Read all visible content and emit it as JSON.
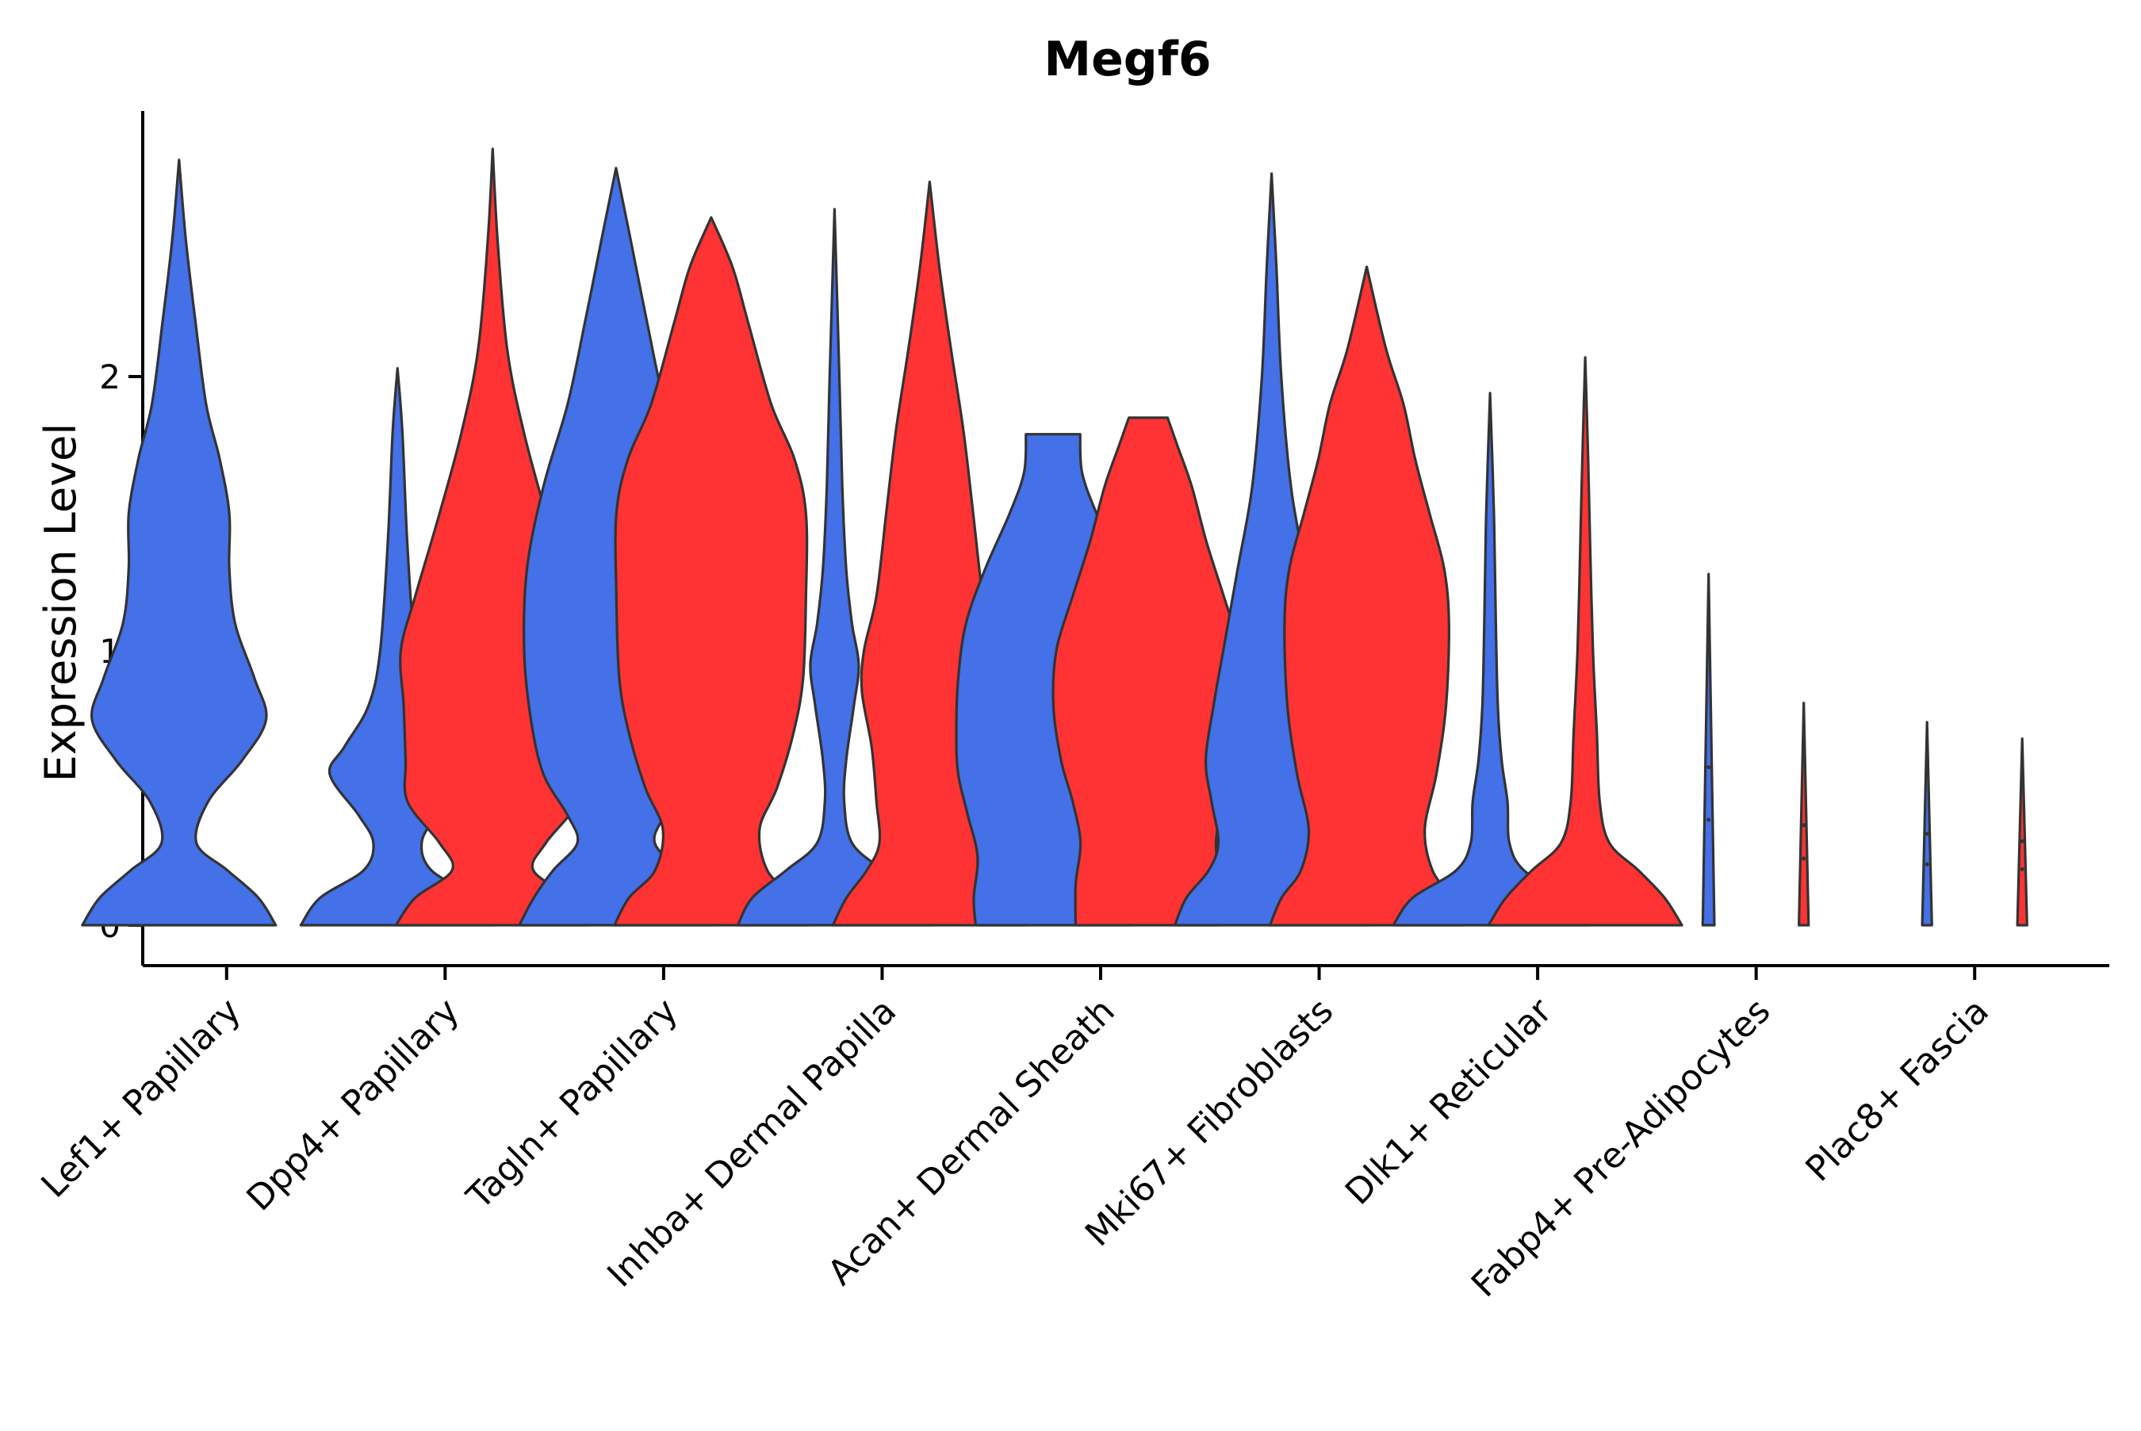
{
  "chart_data": {
    "type": "violin",
    "title": "Megf6",
    "xlabel": "",
    "ylabel": "Expression Level",
    "ylim": [
      -0.14,
      2.96
    ],
    "yticks": [
      0,
      1,
      2
    ],
    "grid": false,
    "legend": "none",
    "colors": {
      "group_a": "#4470E8",
      "group_b": "#FF3333",
      "outline": "#333333"
    },
    "categories": [
      "Lef1+ Papillary",
      "Dpp4+ Papillary",
      "Tagln+ Papillary",
      "Inhba+ Dermal Papilla",
      "Acan+ Dermal Sheath",
      "Mki67+ Fibroblasts",
      "Dlk1+ Reticular",
      "Fabp4+ Pre-Adipocytes",
      "Plac8+ Fascia"
    ],
    "violins": [
      {
        "category": "Lef1+ Papillary",
        "group": "a",
        "max": 2.79,
        "profile": [
          [
            0,
            1.0
          ],
          [
            0.1,
            0.82
          ],
          [
            0.2,
            0.5
          ],
          [
            0.3,
            0.18
          ],
          [
            0.45,
            0.3
          ],
          [
            0.6,
            0.65
          ],
          [
            0.75,
            0.9
          ],
          [
            0.9,
            0.78
          ],
          [
            1.1,
            0.58
          ],
          [
            1.3,
            0.52
          ],
          [
            1.5,
            0.52
          ],
          [
            1.7,
            0.42
          ],
          [
            1.9,
            0.28
          ],
          [
            2.2,
            0.17
          ],
          [
            2.5,
            0.07
          ],
          [
            2.79,
            0.0
          ]
        ]
      },
      {
        "category": "Dpp4+ Papillary",
        "group": "a",
        "max": 2.03,
        "profile": [
          [
            0,
            1.0
          ],
          [
            0.1,
            0.8
          ],
          [
            0.2,
            0.35
          ],
          [
            0.3,
            0.25
          ],
          [
            0.4,
            0.4
          ],
          [
            0.55,
            0.7
          ],
          [
            0.65,
            0.55
          ],
          [
            0.8,
            0.3
          ],
          [
            1.0,
            0.18
          ],
          [
            1.4,
            0.1
          ],
          [
            1.8,
            0.05
          ],
          [
            2.03,
            0.0
          ]
        ]
      },
      {
        "category": "Dpp4+ Papillary",
        "group": "b",
        "max": 2.83,
        "profile": [
          [
            0,
            1.0
          ],
          [
            0.1,
            0.8
          ],
          [
            0.2,
            0.42
          ],
          [
            0.3,
            0.55
          ],
          [
            0.45,
            0.88
          ],
          [
            0.6,
            0.9
          ],
          [
            0.8,
            0.92
          ],
          [
            1.0,
            0.95
          ],
          [
            1.2,
            0.8
          ],
          [
            1.5,
            0.55
          ],
          [
            1.8,
            0.32
          ],
          [
            2.1,
            0.15
          ],
          [
            2.5,
            0.05
          ],
          [
            2.83,
            0.0
          ]
        ]
      },
      {
        "category": "Tagln+ Papillary",
        "group": "a",
        "max": 2.76,
        "profile": [
          [
            0,
            1.0
          ],
          [
            0.1,
            0.85
          ],
          [
            0.2,
            0.65
          ],
          [
            0.3,
            0.4
          ],
          [
            0.4,
            0.5
          ],
          [
            0.55,
            0.75
          ],
          [
            0.75,
            0.88
          ],
          [
            1.0,
            0.95
          ],
          [
            1.3,
            0.92
          ],
          [
            1.6,
            0.75
          ],
          [
            1.9,
            0.5
          ],
          [
            2.2,
            0.32
          ],
          [
            2.5,
            0.15
          ],
          [
            2.76,
            0.0
          ]
        ]
      },
      {
        "category": "Tagln+ Papillary",
        "group": "b",
        "max": 2.58,
        "profile": [
          [
            0,
            1.0
          ],
          [
            0.1,
            0.85
          ],
          [
            0.2,
            0.58
          ],
          [
            0.35,
            0.5
          ],
          [
            0.5,
            0.68
          ],
          [
            0.7,
            0.85
          ],
          [
            0.9,
            0.95
          ],
          [
            1.2,
            0.98
          ],
          [
            1.5,
            0.98
          ],
          [
            1.7,
            0.86
          ],
          [
            1.9,
            0.62
          ],
          [
            2.2,
            0.38
          ],
          [
            2.4,
            0.22
          ],
          [
            2.58,
            0.0
          ]
        ]
      },
      {
        "category": "Inhba+ Dermal Papilla",
        "group": "a",
        "max": 2.61,
        "profile": [
          [
            0,
            1.0
          ],
          [
            0.1,
            0.85
          ],
          [
            0.2,
            0.5
          ],
          [
            0.3,
            0.18
          ],
          [
            0.45,
            0.1
          ],
          [
            0.6,
            0.12
          ],
          [
            0.8,
            0.2
          ],
          [
            0.95,
            0.25
          ],
          [
            1.1,
            0.18
          ],
          [
            1.3,
            0.12
          ],
          [
            1.6,
            0.08
          ],
          [
            2.0,
            0.05
          ],
          [
            2.61,
            0.0
          ]
        ]
      },
      {
        "category": "Inhba+ Dermal Papilla",
        "group": "b",
        "max": 2.71,
        "profile": [
          [
            0,
            1.0
          ],
          [
            0.1,
            0.86
          ],
          [
            0.2,
            0.65
          ],
          [
            0.3,
            0.52
          ],
          [
            0.45,
            0.55
          ],
          [
            0.65,
            0.6
          ],
          [
            0.85,
            0.7
          ],
          [
            1.0,
            0.68
          ],
          [
            1.2,
            0.55
          ],
          [
            1.5,
            0.45
          ],
          [
            1.8,
            0.35
          ],
          [
            2.1,
            0.22
          ],
          [
            2.4,
            0.1
          ],
          [
            2.71,
            0.0
          ]
        ]
      },
      {
        "category": "Acan+ Dermal Sheath",
        "group": "a",
        "max": 1.79,
        "profile": [
          [
            0,
            0.8
          ],
          [
            0.1,
            0.82
          ],
          [
            0.25,
            0.78
          ],
          [
            0.4,
            0.88
          ],
          [
            0.55,
            0.98
          ],
          [
            0.7,
            1.0
          ],
          [
            0.9,
            0.98
          ],
          [
            1.1,
            0.9
          ],
          [
            1.3,
            0.7
          ],
          [
            1.5,
            0.45
          ],
          [
            1.65,
            0.3
          ],
          [
            1.79,
            0.28
          ]
        ]
      },
      {
        "category": "Acan+ Dermal Sheath",
        "group": "b",
        "max": 1.85,
        "profile": [
          [
            0,
            0.75
          ],
          [
            0.15,
            0.75
          ],
          [
            0.3,
            0.7
          ],
          [
            0.45,
            0.78
          ],
          [
            0.6,
            0.9
          ],
          [
            0.8,
            0.98
          ],
          [
            1.0,
            0.95
          ],
          [
            1.2,
            0.78
          ],
          [
            1.4,
            0.6
          ],
          [
            1.6,
            0.45
          ],
          [
            1.75,
            0.3
          ],
          [
            1.85,
            0.2
          ]
        ]
      },
      {
        "category": "Mki67+ Fibroblasts",
        "group": "a",
        "max": 2.74,
        "profile": [
          [
            0,
            1.0
          ],
          [
            0.1,
            0.88
          ],
          [
            0.2,
            0.65
          ],
          [
            0.3,
            0.55
          ],
          [
            0.45,
            0.62
          ],
          [
            0.6,
            0.68
          ],
          [
            0.8,
            0.6
          ],
          [
            1.0,
            0.5
          ],
          [
            1.3,
            0.35
          ],
          [
            1.6,
            0.2
          ],
          [
            2.0,
            0.1
          ],
          [
            2.4,
            0.05
          ],
          [
            2.74,
            0.0
          ]
        ]
      },
      {
        "category": "Mki67+ Fibroblasts",
        "group": "b",
        "max": 2.4,
        "profile": [
          [
            0,
            1.0
          ],
          [
            0.1,
            0.88
          ],
          [
            0.2,
            0.68
          ],
          [
            0.35,
            0.6
          ],
          [
            0.55,
            0.72
          ],
          [
            0.8,
            0.82
          ],
          [
            1.1,
            0.85
          ],
          [
            1.3,
            0.8
          ],
          [
            1.5,
            0.65
          ],
          [
            1.7,
            0.5
          ],
          [
            1.9,
            0.38
          ],
          [
            2.1,
            0.2
          ],
          [
            2.4,
            0.0
          ]
        ]
      },
      {
        "category": "Dlk1+ Reticular",
        "group": "a",
        "max": 1.94,
        "profile": [
          [
            0,
            1.0
          ],
          [
            0.1,
            0.8
          ],
          [
            0.2,
            0.35
          ],
          [
            0.3,
            0.2
          ],
          [
            0.45,
            0.18
          ],
          [
            0.6,
            0.12
          ],
          [
            0.8,
            0.08
          ],
          [
            1.1,
            0.06
          ],
          [
            1.5,
            0.04
          ],
          [
            1.94,
            0.0
          ]
        ]
      },
      {
        "category": "Dlk1+ Reticular",
        "group": "b",
        "max": 2.07,
        "profile": [
          [
            0,
            1.0
          ],
          [
            0.1,
            0.82
          ],
          [
            0.2,
            0.55
          ],
          [
            0.3,
            0.25
          ],
          [
            0.45,
            0.15
          ],
          [
            0.7,
            0.12
          ],
          [
            1.0,
            0.08
          ],
          [
            1.4,
            0.05
          ],
          [
            1.7,
            0.03
          ],
          [
            2.07,
            0.0
          ]
        ]
      },
      {
        "category": "Fabp4+ Pre-Adipocytes",
        "group": "a",
        "max": 1.28,
        "profile": [
          [
            0,
            0.06
          ],
          [
            1.28,
            0.0
          ]
        ]
      },
      {
        "category": "Fabp4+ Pre-Adipocytes",
        "group": "b",
        "max": 0.81,
        "profile": [
          [
            0,
            0.05
          ],
          [
            0.81,
            0.0
          ]
        ]
      },
      {
        "category": "Plac8+ Fascia",
        "group": "a",
        "max": 0.74,
        "profile": [
          [
            0,
            0.05
          ],
          [
            0.74,
            0.0
          ]
        ]
      },
      {
        "category": "Plac8+ Fascia",
        "group": "b",
        "max": 0.68,
        "profile": [
          [
            0,
            0.05
          ],
          [
            0.68,
            0.0
          ]
        ]
      }
    ]
  }
}
